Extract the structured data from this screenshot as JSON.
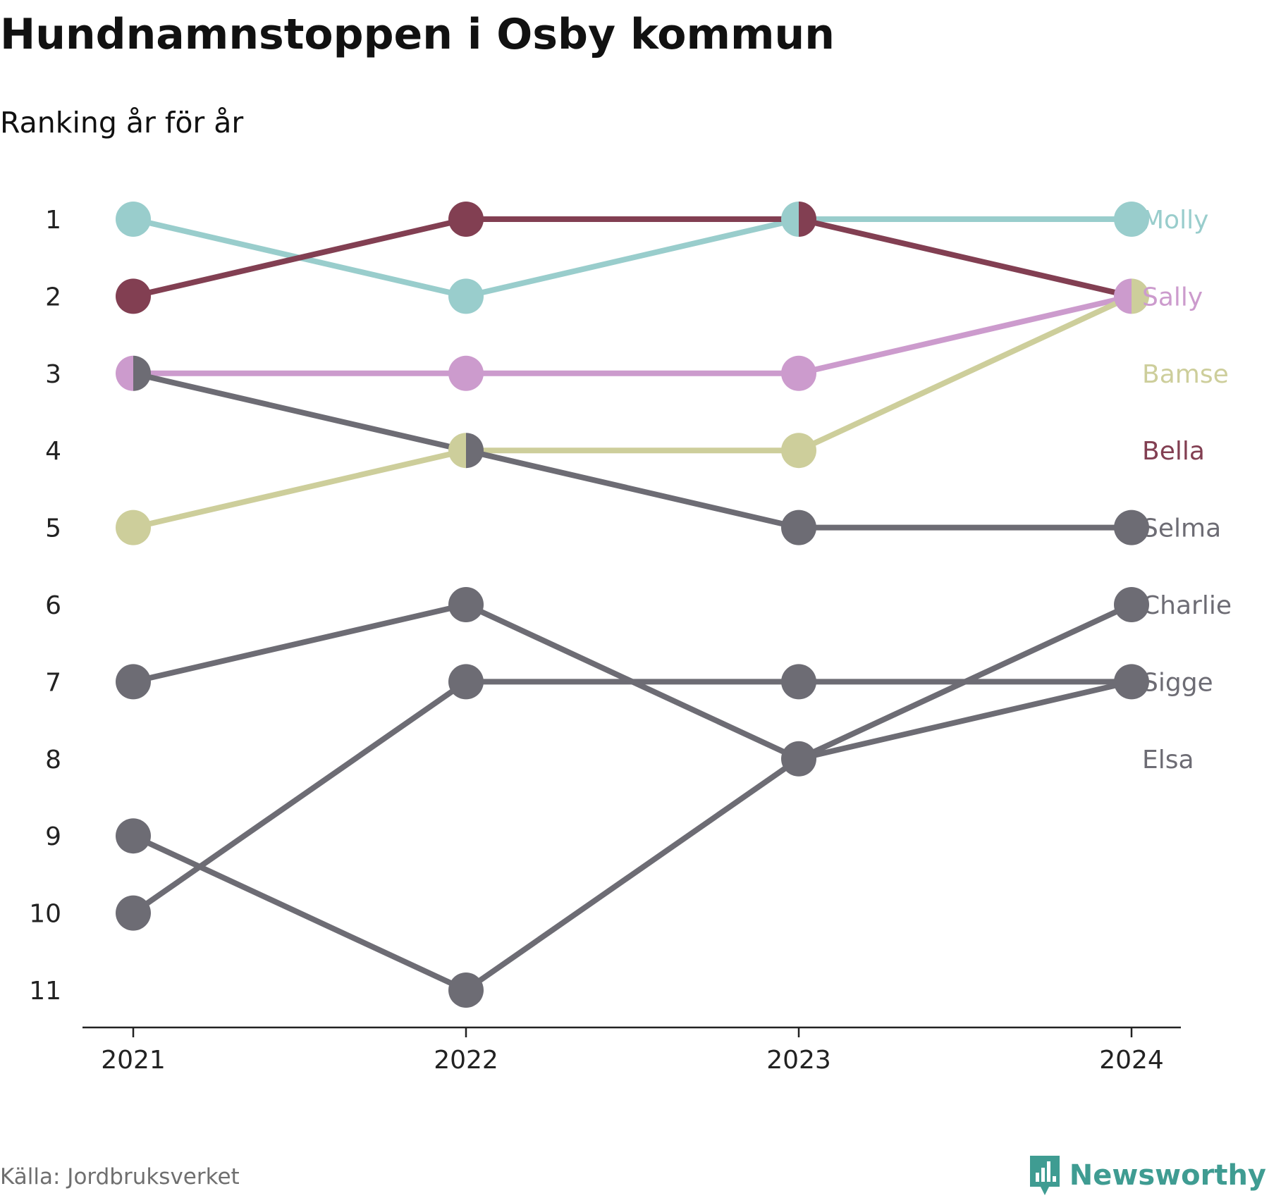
{
  "chart_data": {
    "type": "line",
    "title": "Hundnamnstoppen i Osby kommun",
    "subtitle": "Ranking år för år",
    "x": [
      "2021",
      "2022",
      "2023",
      "2024"
    ],
    "y_ticks": [
      "1",
      "2",
      "3",
      "4",
      "5",
      "6",
      "7",
      "8",
      "9",
      "10",
      "11"
    ],
    "ylim": [
      1,
      11
    ],
    "y_inverted": true,
    "grid": false,
    "series": [
      {
        "name": "Molly",
        "color": "#99cdcc",
        "values": [
          1,
          2,
          1,
          1
        ]
      },
      {
        "name": "Sally",
        "color": "#cc9bcd",
        "values": [
          3,
          3,
          3,
          2
        ]
      },
      {
        "name": "Bamse",
        "color": "#cdce9b",
        "values": [
          5,
          4,
          4,
          2
        ]
      },
      {
        "name": "Bella",
        "color": "#823f52",
        "values": [
          2,
          1,
          1,
          2
        ]
      },
      {
        "name": "Selma",
        "color": "#6d6c74",
        "values": [
          3,
          4,
          5,
          5
        ]
      },
      {
        "name": "Charlie",
        "color": "#6d6c74",
        "values": [
          9,
          11,
          8,
          6
        ]
      },
      {
        "name": "Sigge",
        "color": "#6d6c74",
        "values": [
          10,
          7,
          7,
          7
        ]
      },
      {
        "name": "Elsa",
        "color": "#6d6c74",
        "values": [
          7,
          6,
          8,
          7
        ]
      }
    ],
    "source": "Källa: Jordbruksverket"
  },
  "brand": {
    "name": "Newsworthy",
    "color": "#3f9c92"
  }
}
